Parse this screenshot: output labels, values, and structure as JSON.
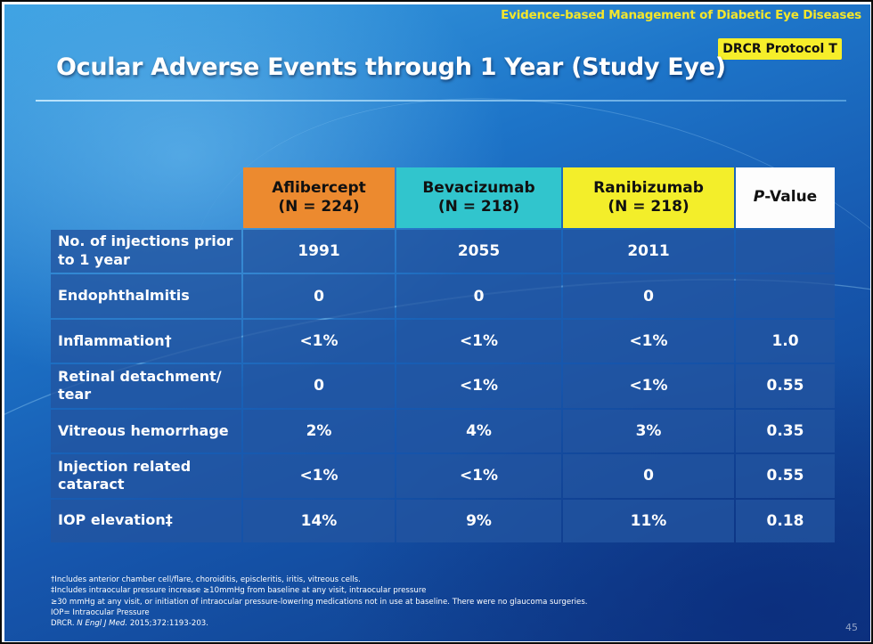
{
  "header": {
    "series_title": "Evidence-based Management of Diabetic Eye Diseases",
    "protocol_badge": "DRCR Protocol T"
  },
  "slide": {
    "title": "Ocular Adverse Events through 1 Year (Study Eye)",
    "page_number": "45"
  },
  "table": {
    "columns": {
      "aflibercept": {
        "name": "Aflibercept",
        "n": "(N = 224)",
        "color": "#ec8a2f"
      },
      "bevacizumab": {
        "name": "Bevacizumab",
        "n": "(N = 218)",
        "color": "#31c5cd"
      },
      "ranibizumab": {
        "name": "Ranibizumab",
        "n": "(N = 218)",
        "color": "#f3ee2a"
      },
      "pvalue": {
        "prefix": "P",
        "suffix": "-Value",
        "color": "#fdfdfd"
      }
    },
    "rows": [
      {
        "label": "No. of injections prior to 1 year",
        "aflibercept": "1991",
        "bevacizumab": "2055",
        "ranibizumab": "2011",
        "pvalue": ""
      },
      {
        "label": "Endophthalmitis",
        "aflibercept": "0",
        "bevacizumab": "0",
        "ranibizumab": "0",
        "pvalue": ""
      },
      {
        "label": "Inflammation†",
        "aflibercept": "<1%",
        "bevacizumab": "<1%",
        "ranibizumab": "<1%",
        "pvalue": "1.0"
      },
      {
        "label": "Retinal detachment/ tear",
        "aflibercept": "0",
        "bevacizumab": "<1%",
        "ranibizumab": "<1%",
        "pvalue": "0.55"
      },
      {
        "label": "Vitreous hemorrhage",
        "aflibercept": "2%",
        "bevacizumab": "4%",
        "ranibizumab": "3%",
        "pvalue": "0.35"
      },
      {
        "label": "Injection related cataract",
        "aflibercept": "<1%",
        "bevacizumab": "<1%",
        "ranibizumab": "0",
        "pvalue": "0.55"
      },
      {
        "label": "IOP elevation‡",
        "aflibercept": "14%",
        "bevacizumab": "9%",
        "ranibizumab": "11%",
        "pvalue": "0.18"
      }
    ]
  },
  "footnotes": {
    "line1": "†Includes anterior chamber cell/flare, choroiditis, episcleritis, iritis, vitreous cells.",
    "line2": "‡Includes intraocular pressure increase ≥10mmHg from baseline at any visit, intraocular pressure",
    "line3": "≥30 mmHg at any visit, or initiation of intraocular pressure-lowering medications not in use at baseline. There were no glaucoma surgeries.",
    "line4": "IOP= Intraocular Pressure",
    "ref_prefix": "DRCR.",
    "ref_journal": "N Engl J Med.",
    "ref_citation": "2015;372:1193-203."
  }
}
